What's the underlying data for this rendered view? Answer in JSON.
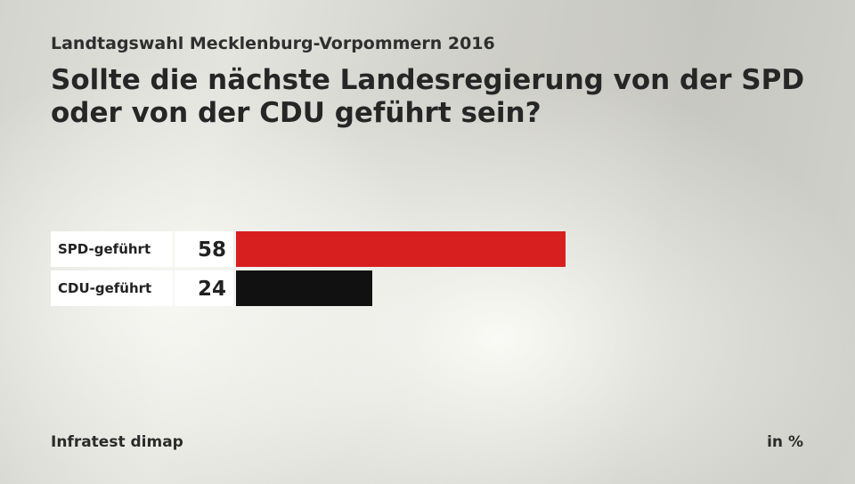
{
  "header": {
    "supertitle": "Landtagswahl Mecklenburg-Vorpommern 2016",
    "title": "Sollte die nächste Landesregierung von der SPD oder von der CDU geführt sein?"
  },
  "footer": {
    "source": "Infratest dimap",
    "unit": "in %"
  },
  "chart_data": {
    "type": "bar",
    "orientation": "horizontal",
    "title": "Sollte die nächste Landesregierung von der SPD oder von der CDU geführt sein?",
    "categories": [
      "SPD-geführt",
      "CDU-geführt"
    ],
    "values": [
      58,
      24
    ],
    "colors": [
      "#d71f1f",
      "#111111"
    ],
    "xlim": [
      0,
      100
    ],
    "grid": false,
    "legend": "none"
  }
}
